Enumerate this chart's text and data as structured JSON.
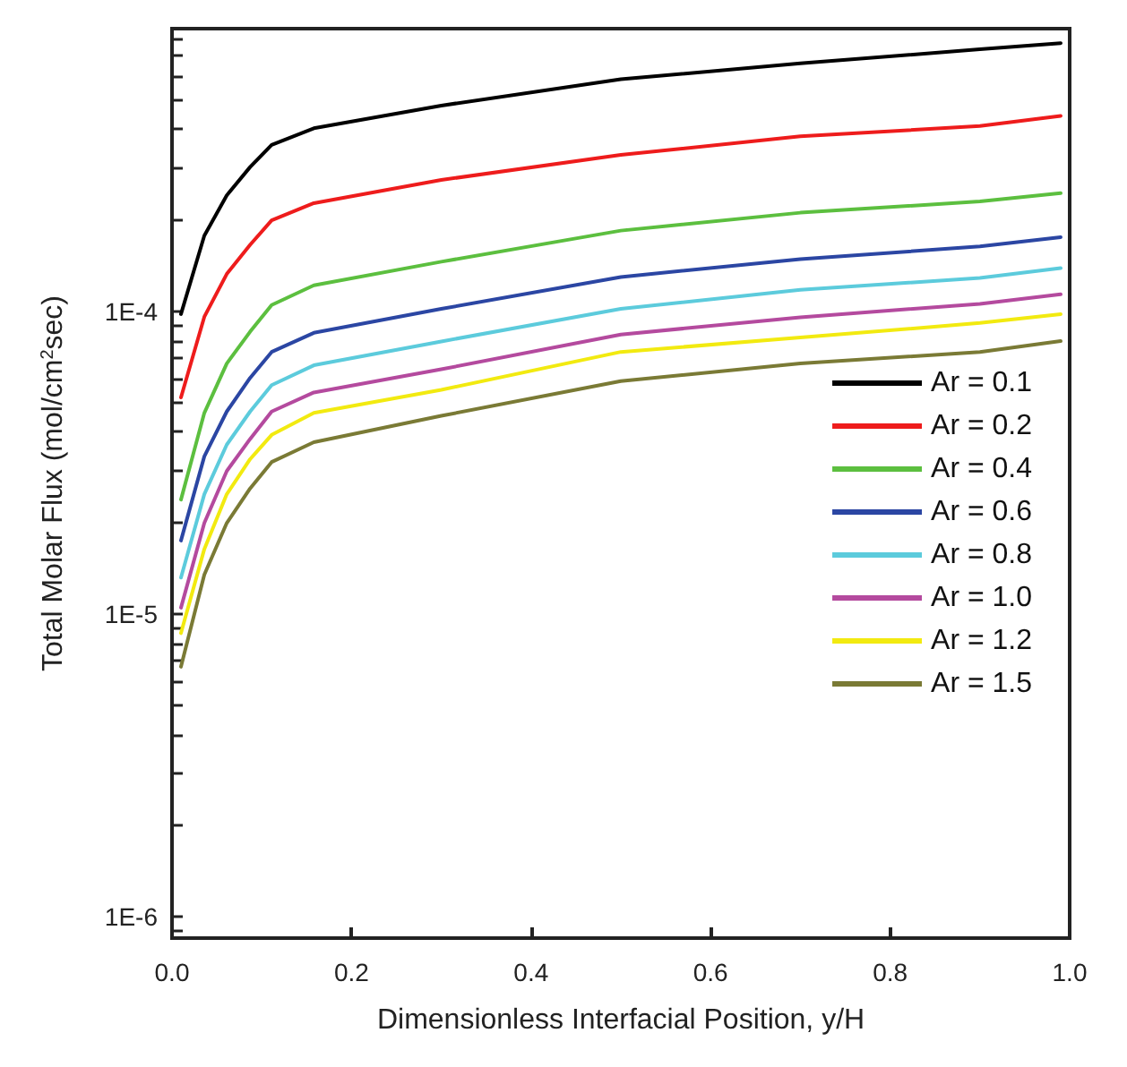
{
  "chart_data": {
    "type": "line",
    "xlabel": "Dimensionless Interfacial Position, y/H",
    "ylabel": "Total Molar Flux (mol/cm$^{2}$sec)",
    "x": [
      0.01,
      0.036,
      0.061,
      0.087,
      0.111,
      0.158,
      0.3,
      0.5,
      0.7,
      0.9,
      0.99
    ],
    "series": [
      {
        "name": "Ar = 0.1",
        "color": "#000000",
        "values": [
          9.8e-05,
          0.000178,
          0.000242,
          0.0003,
          0.000355,
          0.000403,
          0.000479,
          0.000585,
          0.00066,
          0.000735,
          0.00077
        ]
      },
      {
        "name": "Ar = 0.2",
        "color": "#ee1c1c",
        "values": [
          5.2e-05,
          9.6e-05,
          0.000133,
          0.000166,
          0.0002,
          0.000228,
          0.000272,
          0.000329,
          0.000379,
          0.00041,
          0.000443
        ]
      },
      {
        "name": "Ar = 0.4",
        "color": "#5cbf3f",
        "values": [
          2.39e-05,
          4.62e-05,
          6.73e-05,
          8.57e-05,
          0.000105,
          0.000122,
          0.000146,
          0.000185,
          0.000212,
          0.000231,
          0.000246
        ]
      },
      {
        "name": "Ar = 0.6",
        "color": "#2b46a3",
        "values": [
          1.75e-05,
          3.32e-05,
          4.67e-05,
          6.03e-05,
          7.35e-05,
          8.5e-05,
          0.000102,
          0.00013,
          0.000149,
          0.000164,
          0.000176
        ]
      },
      {
        "name": "Ar = 0.8",
        "color": "#5ccbdc",
        "values": [
          1.32e-05,
          2.49e-05,
          3.63e-05,
          4.67e-05,
          5.71e-05,
          6.64e-05,
          7.96e-05,
          0.000102,
          0.000118,
          0.000129,
          0.000139
        ]
      },
      {
        "name": "Ar = 1.0",
        "color": "#b44a9e",
        "values": [
          1.05e-05,
          2e-05,
          2.97e-05,
          3.79e-05,
          4.67e-05,
          5.4e-05,
          6.44e-05,
          8.39e-05,
          9.57e-05,
          0.000106,
          0.000114
        ]
      },
      {
        "name": "Ar = 1.2",
        "color": "#f2ea10",
        "values": [
          8.65e-06,
          1.64e-05,
          2.49e-05,
          3.25e-05,
          3.91e-05,
          4.62e-05,
          5.51e-05,
          7.35e-05,
          8.2e-05,
          9.16e-05,
          9.8e-05
        ]
      },
      {
        "name": "Ar = 1.5",
        "color": "#7a7a35",
        "values": [
          6.7e-06,
          1.35e-05,
          2e-05,
          2.6e-05,
          3.18e-05,
          3.7e-05,
          4.52e-05,
          5.89e-05,
          6.73e-05,
          7.35e-05,
          7.98e-05
        ]
      }
    ],
    "log": "y",
    "xlim": [
      0,
      1
    ],
    "xticks": [
      {
        "value": 0,
        "label": "0.0"
      },
      {
        "value": 0.2,
        "label": "0.2"
      },
      {
        "value": 0.4,
        "label": "0.4"
      },
      {
        "value": 0.6,
        "label": "0.6"
      },
      {
        "value": 0.8,
        "label": "0.8"
      },
      {
        "value": 1,
        "label": "1.0"
      }
    ],
    "ylim": [
      8.5e-07,
      0.00086
    ],
    "yticks": [
      {
        "value": 9e-07,
        "label": null
      },
      {
        "value": 1e-06,
        "label": "1E-6"
      },
      {
        "value": 2e-06,
        "label": null
      },
      {
        "value": 3e-06,
        "label": null
      },
      {
        "value": 4e-06,
        "label": null
      },
      {
        "value": 5e-06,
        "label": null
      },
      {
        "value": 6e-06,
        "label": null
      },
      {
        "value": 7e-06,
        "label": null
      },
      {
        "value": 8e-06,
        "label": null
      },
      {
        "value": 9e-06,
        "label": null
      },
      {
        "value": 1e-05,
        "label": "1E-5"
      },
      {
        "value": 2e-05,
        "label": null
      },
      {
        "value": 3e-05,
        "label": null
      },
      {
        "value": 4e-05,
        "label": null
      },
      {
        "value": 5e-05,
        "label": null
      },
      {
        "value": 6e-05,
        "label": null
      },
      {
        "value": 7e-05,
        "label": null
      },
      {
        "value": 8e-05,
        "label": null
      },
      {
        "value": 9e-05,
        "label": null
      },
      {
        "value": 0.0001,
        "label": "1E-4"
      },
      {
        "value": 0.0002,
        "label": null
      },
      {
        "value": 0.0003,
        "label": null
      },
      {
        "value": 0.0004,
        "label": null
      },
      {
        "value": 0.0005,
        "label": null
      },
      {
        "value": 0.0006,
        "label": null
      },
      {
        "value": 0.0007,
        "label": null
      },
      {
        "value": 0.0008,
        "label": null
      }
    ],
    "grid": false,
    "legend": "right"
  }
}
